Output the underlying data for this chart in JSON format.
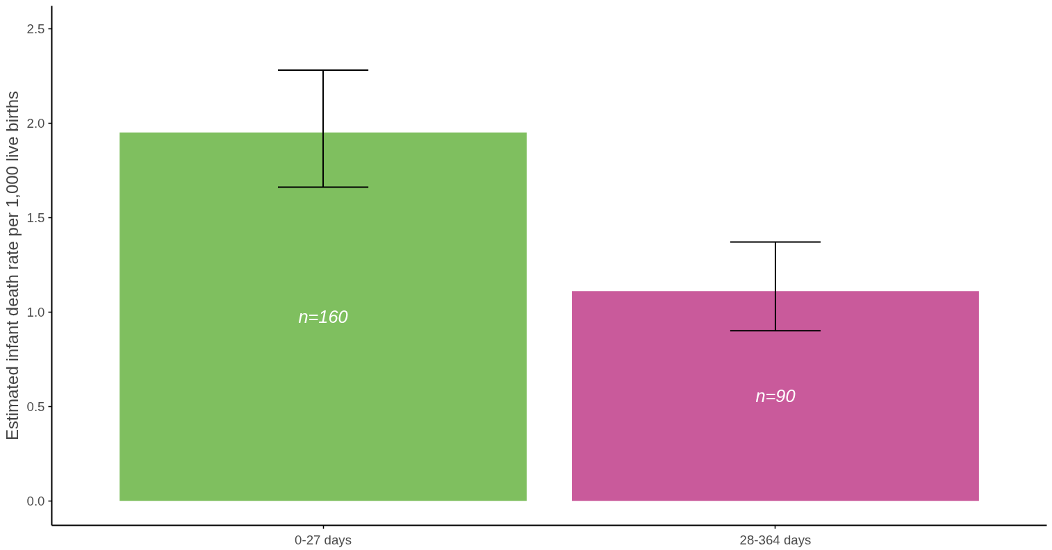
{
  "chart_data": {
    "type": "bar",
    "ylabel": "Estimated infant death rate per 1,000 live births",
    "categories": [
      "0-27 days",
      "28-364 days"
    ],
    "values": [
      1.95,
      1.11
    ],
    "colors": [
      "#7fbf5f",
      "#c95a9b"
    ],
    "errors": [
      [
        1.66,
        2.28
      ],
      [
        0.9,
        1.37
      ]
    ],
    "ylim": [
      -0.13,
      2.62
    ],
    "yticks": [
      {
        "value": 0,
        "label": "0.0"
      },
      {
        "value": 0.5,
        "label": "0.5"
      },
      {
        "value": 1,
        "label": "1.0"
      },
      {
        "value": 1.5,
        "label": "1.5"
      },
      {
        "value": 2,
        "label": "2.0"
      },
      {
        "value": 2.5,
        "label": "2.5"
      }
    ],
    "annotations": [
      "n=160",
      "n=90"
    ],
    "grid": false
  }
}
